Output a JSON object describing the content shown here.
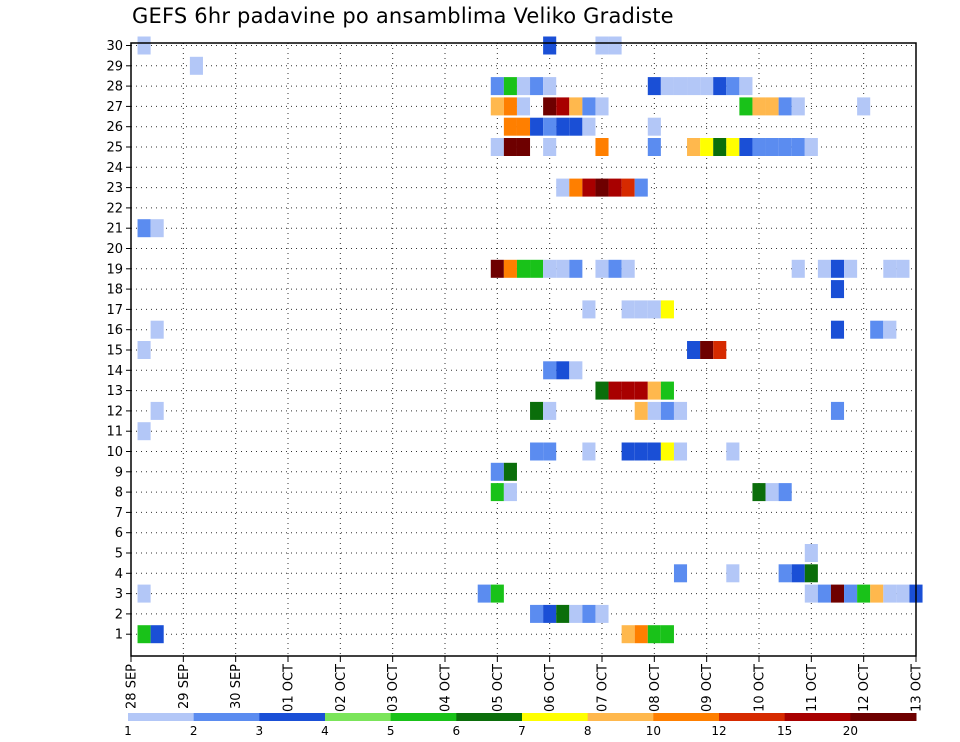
{
  "chart_data": {
    "type": "heatmap",
    "title": "GEFS 6hr padavine po ansamblima Veliko Gradiste",
    "xlabel": "",
    "ylabel": "",
    "x_start": "2023-09-28T00:00",
    "x_end": "2023-10-13T00:00",
    "x_step_hours": 6,
    "x_tick_labels": [
      "28 SEP",
      "29 SEP",
      "30 SEP",
      "01 OCT",
      "02 OCT",
      "03 OCT",
      "04 OCT",
      "05 OCT",
      "06 OCT",
      "07 OCT",
      "08 OCT",
      "09 OCT",
      "10 OCT",
      "11 OCT",
      "12 OCT",
      "13 OCT"
    ],
    "y_tick_labels": [
      "1",
      "2",
      "3",
      "4",
      "5",
      "6",
      "7",
      "8",
      "9",
      "10",
      "11",
      "12",
      "13",
      "14",
      "15",
      "16",
      "17",
      "18",
      "19",
      "20",
      "21",
      "22",
      "23",
      "24",
      "25",
      "26",
      "27",
      "28",
      "29",
      "30"
    ],
    "grid": true,
    "legend_placement": "bottom",
    "colorbar": {
      "labels": [
        "1",
        "2",
        "3",
        "4",
        "5",
        "6",
        "7",
        "8",
        "10",
        "12",
        "15",
        "20"
      ],
      "colors": [
        "#b3c7f7",
        "#5b8cf0",
        "#1a4fd6",
        "#7be55a",
        "#19c219",
        "#0b6e0b",
        "#ffff00",
        "#ffb84d",
        "#ff7f00",
        "#d62a00",
        "#a80000",
        "#6e0000"
      ]
    },
    "series": [
      {
        "member": 1,
        "cells": [
          [
            "2023-09-28T06:00",
            5
          ],
          [
            "2023-09-28T12:00",
            3
          ],
          [
            "2023-10-07T12:00",
            8
          ],
          [
            "2023-10-07T18:00",
            10
          ],
          [
            "2023-10-08T00:00",
            5
          ],
          [
            "2023-10-08T06:00",
            5
          ]
        ]
      },
      {
        "member": 2,
        "cells": [
          [
            "2023-10-05T18:00",
            2
          ],
          [
            "2023-10-06T00:00",
            3
          ],
          [
            "2023-10-06T06:00",
            6
          ],
          [
            "2023-10-06T12:00",
            1
          ],
          [
            "2023-10-06T18:00",
            2
          ],
          [
            "2023-10-07T00:00",
            1
          ]
        ]
      },
      {
        "member": 3,
        "cells": [
          [
            "2023-09-28T06:00",
            1
          ],
          [
            "2023-10-04T18:00",
            2
          ],
          [
            "2023-10-05T00:00",
            5
          ],
          [
            "2023-10-11T00:00",
            1
          ],
          [
            "2023-10-11T06:00",
            2
          ],
          [
            "2023-10-11T12:00",
            20
          ],
          [
            "2023-10-11T18:00",
            2
          ],
          [
            "2023-10-12T00:00",
            5
          ],
          [
            "2023-10-12T06:00",
            8
          ],
          [
            "2023-10-12T12:00",
            1
          ],
          [
            "2023-10-12T18:00",
            1
          ],
          [
            "2023-10-13T00:00",
            3
          ]
        ]
      },
      {
        "member": 4,
        "cells": [
          [
            "2023-10-08T12:00",
            2
          ],
          [
            "2023-10-09T12:00",
            1
          ],
          [
            "2023-10-10T12:00",
            2
          ],
          [
            "2023-10-10T18:00",
            3
          ],
          [
            "2023-10-11T00:00",
            6
          ]
        ]
      },
      {
        "member": 5,
        "cells": [
          [
            "2023-10-11T00:00",
            1
          ]
        ]
      },
      {
        "member": 8,
        "cells": [
          [
            "2023-10-05T00:00",
            5
          ],
          [
            "2023-10-05T06:00",
            1
          ],
          [
            "2023-10-10T00:00",
            6
          ],
          [
            "2023-10-10T06:00",
            1
          ],
          [
            "2023-10-10T12:00",
            2
          ]
        ]
      },
      {
        "member": 9,
        "cells": [
          [
            "2023-10-05T00:00",
            2
          ],
          [
            "2023-10-05T06:00",
            6
          ]
        ]
      },
      {
        "member": 10,
        "cells": [
          [
            "2023-10-05T18:00",
            2
          ],
          [
            "2023-10-06T00:00",
            2
          ],
          [
            "2023-10-06T18:00",
            1
          ],
          [
            "2023-10-07T12:00",
            3
          ],
          [
            "2023-10-07T18:00",
            3
          ],
          [
            "2023-10-08T00:00",
            3
          ],
          [
            "2023-10-08T06:00",
            7
          ],
          [
            "2023-10-08T12:00",
            1
          ],
          [
            "2023-10-09T12:00",
            1
          ]
        ]
      },
      {
        "member": 11,
        "cells": [
          [
            "2023-09-28T06:00",
            1
          ]
        ]
      },
      {
        "member": 12,
        "cells": [
          [
            "2023-09-28T12:00",
            1
          ],
          [
            "2023-10-05T18:00",
            6
          ],
          [
            "2023-10-06T00:00",
            1
          ],
          [
            "2023-10-07T18:00",
            8
          ],
          [
            "2023-10-08T00:00",
            1
          ],
          [
            "2023-10-08T06:00",
            2
          ],
          [
            "2023-10-08T12:00",
            1
          ],
          [
            "2023-10-11T12:00",
            2
          ]
        ]
      },
      {
        "member": 13,
        "cells": [
          [
            "2023-10-07T00:00",
            6
          ],
          [
            "2023-10-07T06:00",
            15
          ],
          [
            "2023-10-07T12:00",
            15
          ],
          [
            "2023-10-07T18:00",
            15
          ],
          [
            "2023-10-08T00:00",
            8
          ],
          [
            "2023-10-08T06:00",
            5
          ]
        ]
      },
      {
        "member": 14,
        "cells": [
          [
            "2023-10-06T00:00",
            2
          ],
          [
            "2023-10-06T06:00",
            3
          ],
          [
            "2023-10-06T12:00",
            1
          ]
        ]
      },
      {
        "member": 15,
        "cells": [
          [
            "2023-09-28T06:00",
            1
          ],
          [
            "2023-10-08T18:00",
            3
          ],
          [
            "2023-10-09T00:00",
            20
          ],
          [
            "2023-10-09T06:00",
            12
          ]
        ]
      },
      {
        "member": 16,
        "cells": [
          [
            "2023-09-28T12:00",
            1
          ],
          [
            "2023-10-11T12:00",
            3
          ],
          [
            "2023-10-12T06:00",
            2
          ],
          [
            "2023-10-12T12:00",
            1
          ]
        ]
      },
      {
        "member": 17,
        "cells": [
          [
            "2023-10-06T18:00",
            1
          ],
          [
            "2023-10-07T12:00",
            1
          ],
          [
            "2023-10-07T18:00",
            1
          ],
          [
            "2023-10-08T00:00",
            1
          ],
          [
            "2023-10-08T06:00",
            7
          ]
        ]
      },
      {
        "member": 18,
        "cells": [
          [
            "2023-10-11T12:00",
            3
          ]
        ]
      },
      {
        "member": 19,
        "cells": [
          [
            "2023-10-05T00:00",
            20
          ],
          [
            "2023-10-05T06:00",
            10
          ],
          [
            "2023-10-05T12:00",
            5
          ],
          [
            "2023-10-05T18:00",
            5
          ],
          [
            "2023-10-06T00:00",
            1
          ],
          [
            "2023-10-06T06:00",
            1
          ],
          [
            "2023-10-06T12:00",
            2
          ],
          [
            "2023-10-07T00:00",
            1
          ],
          [
            "2023-10-07T06:00",
            2
          ],
          [
            "2023-10-07T12:00",
            1
          ],
          [
            "2023-10-10T18:00",
            1
          ],
          [
            "2023-10-11T06:00",
            1
          ],
          [
            "2023-10-11T12:00",
            3
          ],
          [
            "2023-10-11T18:00",
            1
          ],
          [
            "2023-10-12T12:00",
            1
          ],
          [
            "2023-10-12T18:00",
            1
          ]
        ]
      },
      {
        "member": 21,
        "cells": [
          [
            "2023-09-28T06:00",
            2
          ],
          [
            "2023-09-28T12:00",
            1
          ]
        ]
      },
      {
        "member": 23,
        "cells": [
          [
            "2023-10-06T06:00",
            1
          ],
          [
            "2023-10-06T12:00",
            10
          ],
          [
            "2023-10-06T18:00",
            15
          ],
          [
            "2023-10-07T00:00",
            20
          ],
          [
            "2023-10-07T06:00",
            15
          ],
          [
            "2023-10-07T12:00",
            12
          ],
          [
            "2023-10-07T18:00",
            2
          ]
        ]
      },
      {
        "member": 25,
        "cells": [
          [
            "2023-10-05T00:00",
            1
          ],
          [
            "2023-10-05T06:00",
            20
          ],
          [
            "2023-10-05T12:00",
            20
          ],
          [
            "2023-10-06T00:00",
            1
          ],
          [
            "2023-10-07T00:00",
            10
          ],
          [
            "2023-10-08T00:00",
            2
          ],
          [
            "2023-10-08T18:00",
            8
          ],
          [
            "2023-10-09T00:00",
            7
          ],
          [
            "2023-10-09T06:00",
            6
          ],
          [
            "2023-10-09T12:00",
            7
          ],
          [
            "2023-10-09T18:00",
            3
          ],
          [
            "2023-10-10T00:00",
            2
          ],
          [
            "2023-10-10T06:00",
            2
          ],
          [
            "2023-10-10T12:00",
            2
          ],
          [
            "2023-10-10T18:00",
            2
          ],
          [
            "2023-10-11T00:00",
            1
          ]
        ]
      },
      {
        "member": 26,
        "cells": [
          [
            "2023-10-05T06:00",
            10
          ],
          [
            "2023-10-05T12:00",
            10
          ],
          [
            "2023-10-05T18:00",
            3
          ],
          [
            "2023-10-06T00:00",
            2
          ],
          [
            "2023-10-06T06:00",
            3
          ],
          [
            "2023-10-06T12:00",
            3
          ],
          [
            "2023-10-06T18:00",
            1
          ],
          [
            "2023-10-08T00:00",
            1
          ]
        ]
      },
      {
        "member": 27,
        "cells": [
          [
            "2023-10-05T00:00",
            8
          ],
          [
            "2023-10-05T06:00",
            10
          ],
          [
            "2023-10-05T12:00",
            1
          ],
          [
            "2023-10-06T00:00",
            20
          ],
          [
            "2023-10-06T06:00",
            15
          ],
          [
            "2023-10-06T12:00",
            8
          ],
          [
            "2023-10-06T18:00",
            2
          ],
          [
            "2023-10-07T00:00",
            1
          ],
          [
            "2023-10-09T18:00",
            5
          ],
          [
            "2023-10-10T00:00",
            8
          ],
          [
            "2023-10-10T06:00",
            8
          ],
          [
            "2023-10-10T12:00",
            2
          ],
          [
            "2023-10-10T18:00",
            1
          ],
          [
            "2023-10-12T00:00",
            1
          ]
        ]
      },
      {
        "member": 28,
        "cells": [
          [
            "2023-10-05T00:00",
            2
          ],
          [
            "2023-10-05T06:00",
            5
          ],
          [
            "2023-10-05T12:00",
            1
          ],
          [
            "2023-10-05T18:00",
            2
          ],
          [
            "2023-10-06T00:00",
            1
          ],
          [
            "2023-10-08T00:00",
            3
          ],
          [
            "2023-10-08T06:00",
            1
          ],
          [
            "2023-10-08T12:00",
            1
          ],
          [
            "2023-10-08T18:00",
            1
          ],
          [
            "2023-10-09T00:00",
            1
          ],
          [
            "2023-10-09T06:00",
            3
          ],
          [
            "2023-10-09T12:00",
            2
          ],
          [
            "2023-10-09T18:00",
            1
          ]
        ]
      },
      {
        "member": 29,
        "cells": [
          [
            "2023-09-29T06:00",
            1
          ]
        ]
      },
      {
        "member": 30,
        "cells": [
          [
            "2023-09-28T06:00",
            1
          ],
          [
            "2023-10-06T00:00",
            3
          ],
          [
            "2023-10-07T00:00",
            1
          ],
          [
            "2023-10-07T06:00",
            1
          ]
        ]
      }
    ]
  }
}
